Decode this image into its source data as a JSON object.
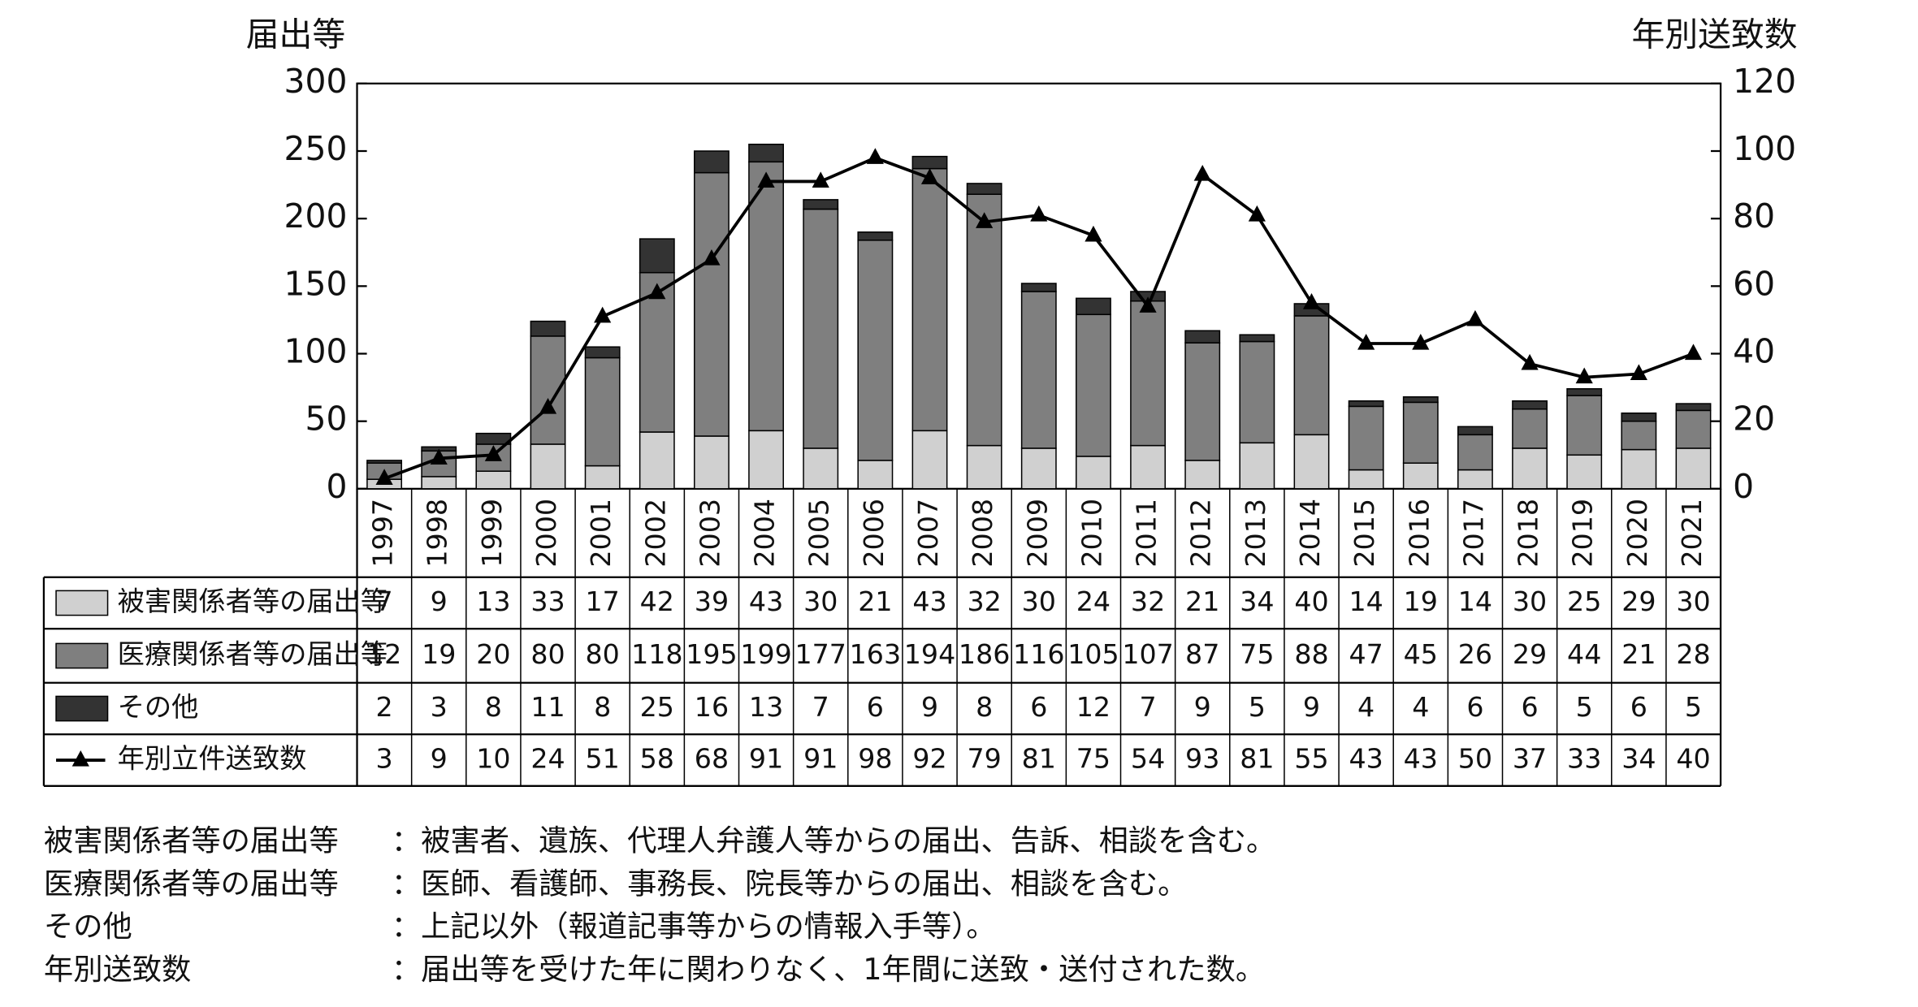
{
  "chart_data": {
    "type": "bar",
    "stacked": true,
    "y_label": "届出等",
    "y2_label": "年別送致数",
    "categories": [
      "1997",
      "1998",
      "1999",
      "2000",
      "2001",
      "2002",
      "2003",
      "2004",
      "2005",
      "2006",
      "2007",
      "2008",
      "2009",
      "2010",
      "2011",
      "2012",
      "2013",
      "2014",
      "2015",
      "2016",
      "2017",
      "2018",
      "2019",
      "2020",
      "2021"
    ],
    "series": [
      {
        "name": "被害関係者等の届出等",
        "color": "#d0d0d0",
        "values": [
          7,
          9,
          13,
          33,
          17,
          42,
          39,
          43,
          30,
          21,
          43,
          32,
          30,
          24,
          32,
          21,
          34,
          40,
          14,
          19,
          14,
          30,
          25,
          29,
          30
        ]
      },
      {
        "name": "医療関係者等の届出等",
        "color": "#7f7f7f",
        "values": [
          12,
          19,
          20,
          80,
          80,
          118,
          195,
          199,
          177,
          163,
          194,
          186,
          116,
          105,
          107,
          87,
          75,
          88,
          47,
          45,
          26,
          29,
          44,
          21,
          28
        ]
      },
      {
        "name": "その他",
        "color": "#333333",
        "values": [
          2,
          3,
          8,
          11,
          8,
          25,
          16,
          13,
          7,
          6,
          9,
          8,
          6,
          12,
          7,
          9,
          5,
          9,
          4,
          4,
          6,
          6,
          5,
          6,
          5
        ]
      },
      {
        "name": "年別立件送致数",
        "type": "line",
        "axis": "y2",
        "color": "#000000",
        "values": [
          3,
          9,
          10,
          24,
          51,
          58,
          68,
          91,
          91,
          98,
          92,
          79,
          81,
          75,
          54,
          93,
          81,
          55,
          43,
          43,
          50,
          37,
          33,
          34,
          40
        ]
      }
    ],
    "ylim": [
      0,
      300
    ],
    "yticks": [
      0,
      50,
      100,
      150,
      200,
      250,
      300
    ],
    "y2lim": [
      0,
      120
    ],
    "y2ticks": [
      0,
      20,
      40,
      60,
      80,
      100,
      120
    ],
    "grid": false
  },
  "notes": [
    {
      "term": "被害関係者等の届出等",
      "desc": "：被害者、遺族、代理人弁護人等からの届出、告訴、相談を含む。"
    },
    {
      "term": "医療関係者等の届出等",
      "desc": "：医師、看護師、事務長、院長等からの届出、相談を含む。"
    },
    {
      "term": "その他",
      "desc": "：上記以外（報道記事等からの情報入手等）。"
    },
    {
      "term": "年別送致数",
      "desc": "：届出等を受けた年に関わりなく、1年間に送致・送付された数。"
    }
  ]
}
